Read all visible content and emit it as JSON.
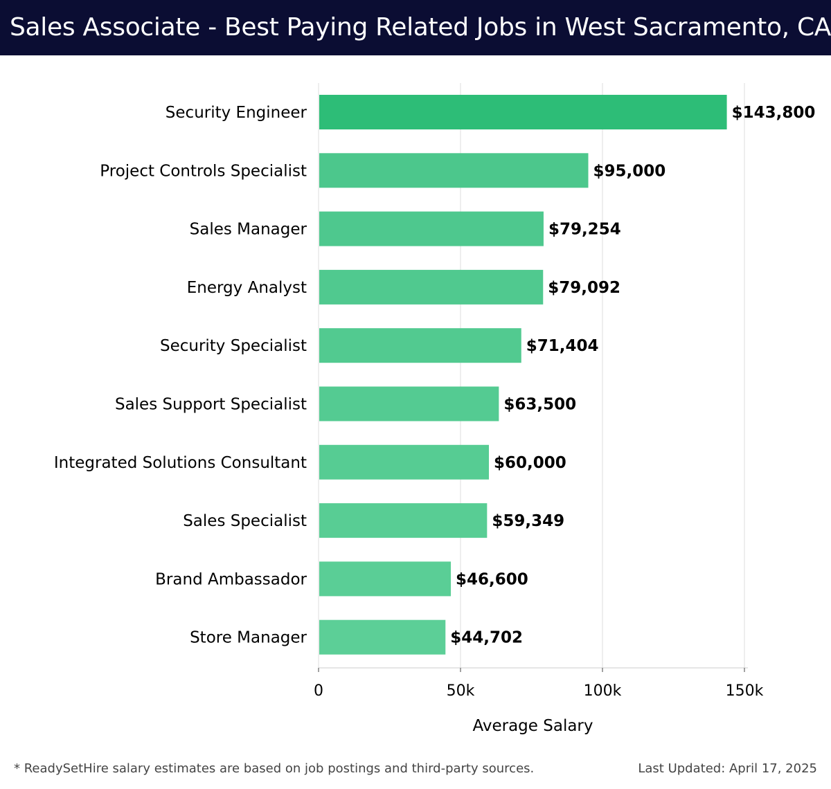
{
  "header": {
    "title": "Sales Associate - Best Paying Related Jobs in West Sacramento, CA"
  },
  "chart_data": {
    "type": "bar",
    "orientation": "horizontal",
    "categories": [
      "Security Engineer",
      "Project Controls Specialist",
      "Sales Manager",
      "Energy Analyst",
      "Security Specialist",
      "Sales Support Specialist",
      "Integrated Solutions Consultant",
      "Sales Specialist",
      "Brand Ambassador",
      "Store Manager"
    ],
    "values": [
      143800,
      95000,
      79254,
      79092,
      71404,
      63500,
      60000,
      59349,
      46600,
      44702
    ],
    "value_labels": [
      "$143,800",
      "$95,000",
      "$79,254",
      "$79,092",
      "$71,404",
      "$63,500",
      "$60,000",
      "$59,349",
      "$46,600",
      "$44,702"
    ],
    "xlabel": "Average Salary",
    "ylabel": "",
    "xlim": [
      0,
      150000
    ],
    "xticks": [
      0,
      50000,
      100000,
      150000
    ],
    "xtick_labels": [
      "0",
      "50k",
      "100k",
      "150k"
    ],
    "grid": true,
    "colors": {
      "top_bar": "#2dbd77",
      "bars": "#4fc98f",
      "bars_light": "#5ccf97",
      "grid": "#dddddd",
      "axis": "#cccccc"
    }
  },
  "footer": {
    "note": "* ReadySetHire salary estimates are based on job postings and third-party sources.",
    "updated": "Last Updated: April 17, 2025"
  }
}
